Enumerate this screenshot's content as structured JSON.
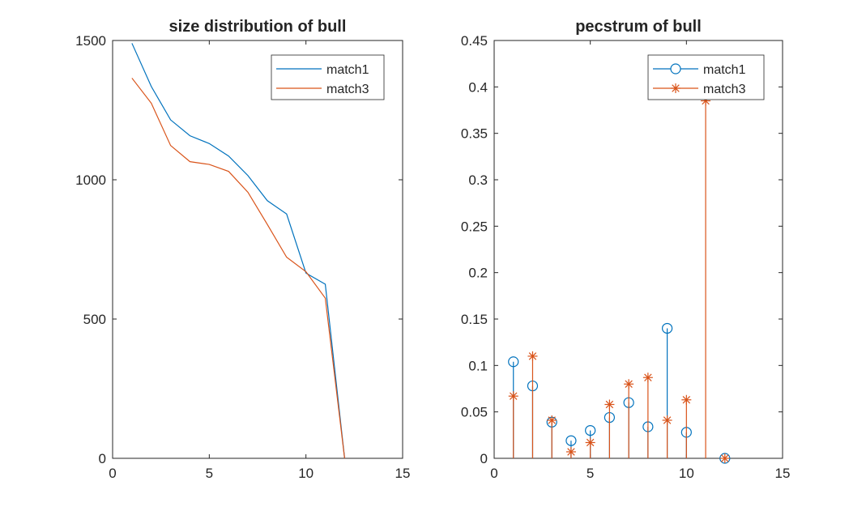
{
  "chart_data": [
    {
      "type": "line",
      "title": "size distribution of bull",
      "xlabel": "",
      "ylabel": "",
      "xlim": [
        0,
        15
      ],
      "ylim": [
        0,
        1500
      ],
      "xticks": [
        0,
        5,
        10,
        15
      ],
      "yticks": [
        0,
        500,
        1000,
        1500
      ],
      "grid": false,
      "legend_position": "top-right",
      "series": [
        {
          "name": "match1",
          "color": "#0072BD",
          "x": [
            1,
            2,
            3,
            4,
            5,
            6,
            7,
            8,
            9,
            10,
            11,
            12
          ],
          "y": [
            1490,
            1335,
            1215,
            1158,
            1130,
            1085,
            1015,
            925,
            877,
            665,
            625,
            0
          ]
        },
        {
          "name": "match3",
          "color": "#D95319",
          "x": [
            1,
            2,
            3,
            4,
            5,
            6,
            7,
            8,
            9,
            10,
            11,
            12
          ],
          "y": [
            1365,
            1275,
            1123,
            1065,
            1055,
            1030,
            955,
            840,
            722,
            670,
            575,
            0
          ]
        }
      ]
    },
    {
      "type": "stem",
      "title": "pecstrum of bull",
      "xlabel": "",
      "ylabel": "",
      "xlim": [
        0,
        15
      ],
      "ylim": [
        0,
        0.45
      ],
      "xticks": [
        0,
        5,
        10,
        15
      ],
      "yticks": [
        0,
        0.05,
        0.1,
        0.15,
        0.2,
        0.25,
        0.3,
        0.35,
        0.4,
        0.45
      ],
      "grid": false,
      "legend_position": "top-right",
      "series": [
        {
          "name": "match1",
          "color": "#0072BD",
          "marker": "circle",
          "x": [
            1,
            2,
            3,
            4,
            5,
            6,
            7,
            8,
            9,
            10,
            12
          ],
          "y": [
            0.104,
            0.078,
            0.039,
            0.019,
            0.03,
            0.044,
            0.06,
            0.034,
            0.14,
            0.028,
            0.0
          ]
        },
        {
          "name": "match3",
          "color": "#D95319",
          "marker": "asterisk",
          "x": [
            1,
            2,
            3,
            4,
            5,
            6,
            7,
            8,
            9,
            10,
            11,
            12
          ],
          "y": [
            0.067,
            0.11,
            0.041,
            0.007,
            0.017,
            0.058,
            0.08,
            0.087,
            0.041,
            0.063,
            0.385,
            0.0
          ]
        }
      ]
    }
  ]
}
